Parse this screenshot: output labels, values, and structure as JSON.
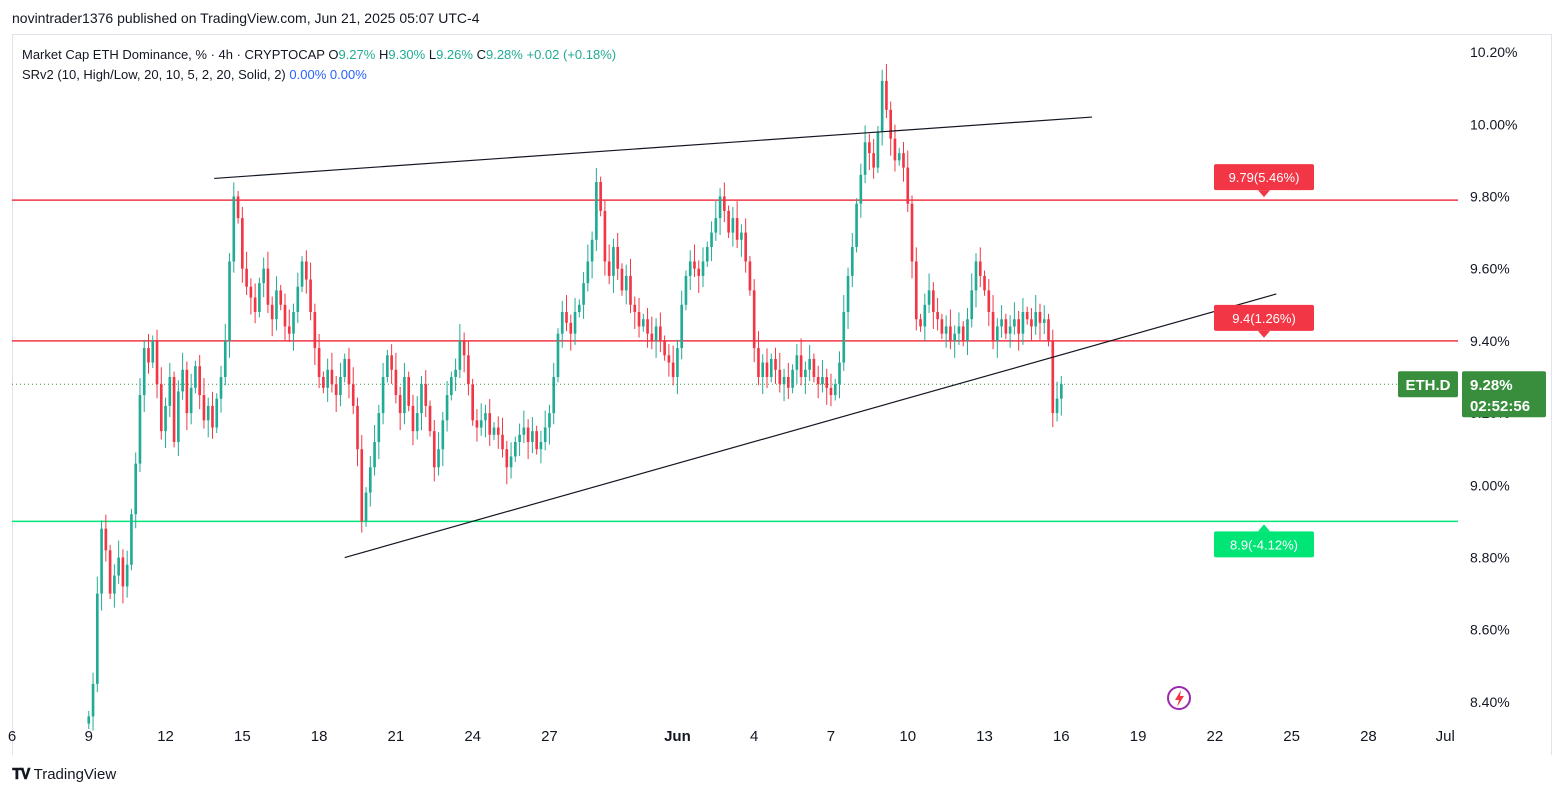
{
  "header": {
    "published": "novintrader1376 published on TradingView.com, Jun 21, 2025 05:07 UTC-4"
  },
  "legend": {
    "symbol": "Market Cap ETH Dominance, % · 4h · CRYPTOCAP",
    "o_label": "O",
    "o_value": "9.27%",
    "h_label": "H",
    "h_value": "9.30%",
    "l_label": "L",
    "l_value": "9.26%",
    "c_label": "C",
    "c_value": "9.28%",
    "change": "+0.02 (+0.18%)",
    "indicator": "SRv2 (10, High/Low, 20, 10, 5, 2, 20, Solid, 2)",
    "ind_val1": "0.00%",
    "ind_val2": "0.00%"
  },
  "footer": {
    "logo_text": "TradingView"
  },
  "colors": {
    "up": "#22ab94",
    "down": "#f23645",
    "resistance": "#f23645",
    "support": "#00e676",
    "last_price": "#388e3c",
    "trendline": "#131722"
  },
  "chart_data": {
    "type": "candlestick",
    "symbol_badge": "ETH.D",
    "last_price_label": "9.28%",
    "countdown": "02:52:56",
    "last_price": 9.28,
    "ylim": [
      8.35,
      10.25
    ],
    "y_ticks": [
      "8.40%",
      "8.60%",
      "8.80%",
      "9.00%",
      "9.20%",
      "9.40%",
      "9.60%",
      "9.80%",
      "10.00%",
      "10.20%"
    ],
    "y_tick_values": [
      8.4,
      8.6,
      8.8,
      9.0,
      9.2,
      9.4,
      9.6,
      9.8,
      10.0,
      10.2
    ],
    "x_ticks": [
      "6",
      "9",
      "12",
      "15",
      "18",
      "21",
      "24",
      "27",
      "Jun",
      "4",
      "7",
      "10",
      "13",
      "16",
      "19",
      "22",
      "25",
      "28",
      "Jul"
    ],
    "x_tick_days": [
      6,
      9,
      12,
      15,
      18,
      21,
      24,
      27,
      32,
      35,
      38,
      41,
      44,
      47,
      50,
      53,
      56,
      59,
      62
    ],
    "x_range_days": [
      6,
      62.5
    ],
    "levels": [
      {
        "value": 9.79,
        "label": "9.79(5.46%)",
        "kind": "resistance"
      },
      {
        "value": 9.4,
        "label": "9.4(1.26%)",
        "kind": "resistance"
      },
      {
        "value": 8.9,
        "label": "8.9(-4.12%)",
        "kind": "support"
      }
    ],
    "trendlines": [
      {
        "from": [
          13.9,
          9.85
        ],
        "to": [
          48.2,
          10.02
        ]
      },
      {
        "from": [
          19.0,
          8.8
        ],
        "to": [
          55.4,
          9.53
        ]
      }
    ],
    "closes": [
      8.36,
      8.45,
      8.7,
      8.88,
      8.82,
      8.7,
      8.75,
      8.8,
      8.72,
      8.78,
      8.92,
      9.06,
      9.25,
      9.38,
      9.34,
      9.4,
      9.28,
      9.15,
      9.22,
      9.3,
      9.12,
      9.26,
      9.32,
      9.2,
      9.27,
      9.33,
      9.25,
      9.18,
      9.22,
      9.16,
      9.24,
      9.3,
      9.4,
      9.62,
      9.8,
      9.74,
      9.6,
      9.55,
      9.52,
      9.48,
      9.56,
      9.6,
      9.5,
      9.46,
      9.54,
      9.5,
      9.44,
      9.42,
      9.48,
      9.55,
      9.62,
      9.57,
      9.48,
      9.38,
      9.3,
      9.27,
      9.32,
      9.28,
      9.25,
      9.3,
      9.35,
      9.28,
      9.22,
      9.1,
      8.9,
      8.98,
      9.05,
      9.12,
      9.2,
      9.3,
      9.36,
      9.32,
      9.25,
      9.2,
      9.3,
      9.22,
      9.15,
      9.2,
      9.28,
      9.22,
      9.15,
      9.05,
      9.1,
      9.18,
      9.25,
      9.3,
      9.32,
      9.4,
      9.36,
      9.28,
      9.18,
      9.16,
      9.18,
      9.2,
      9.14,
      9.16,
      9.14,
      9.1,
      9.05,
      9.08,
      9.12,
      9.14,
      9.16,
      9.12,
      9.15,
      9.1,
      9.12,
      9.16,
      9.2,
      9.3,
      9.42,
      9.48,
      9.45,
      9.42,
      9.48,
      9.5,
      9.56,
      9.62,
      9.68,
      9.84,
      9.76,
      9.62,
      9.58,
      9.66,
      9.6,
      9.54,
      9.58,
      9.5,
      9.48,
      9.44,
      9.46,
      9.42,
      9.4,
      9.44,
      9.4,
      9.36,
      9.34,
      9.3,
      9.38,
      9.5,
      9.58,
      9.62,
      9.6,
      9.58,
      9.62,
      9.66,
      9.7,
      9.74,
      9.8,
      9.76,
      9.7,
      9.74,
      9.68,
      9.7,
      9.62,
      9.54,
      9.38,
      9.3,
      9.34,
      9.3,
      9.35,
      9.32,
      9.28,
      9.3,
      9.27,
      9.32,
      9.36,
      9.3,
      9.32,
      9.35,
      9.3,
      9.28,
      9.3,
      9.27,
      9.25,
      9.28,
      9.34,
      9.48,
      9.58,
      9.66,
      9.78,
      9.86,
      9.95,
      9.92,
      9.88,
      9.98,
      10.12,
      10.04,
      9.96,
      9.9,
      9.92,
      9.88,
      9.78,
      9.62,
      9.46,
      9.44,
      9.5,
      9.54,
      9.48,
      9.46,
      9.42,
      9.44,
      9.4,
      9.42,
      9.44,
      9.4,
      9.46,
      9.54,
      9.62,
      9.58,
      9.54,
      9.48,
      9.4,
      9.44,
      9.46,
      9.42,
      9.44,
      9.46,
      9.42,
      9.48,
      9.46,
      9.44,
      9.48,
      9.45,
      9.46,
      9.4,
      9.2,
      9.24,
      9.28
    ]
  }
}
